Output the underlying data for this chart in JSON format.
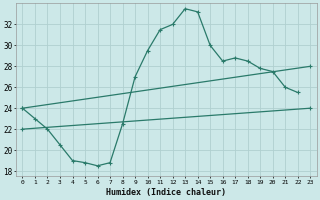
{
  "xlabel": "Humidex (Indice chaleur)",
  "background_color": "#cce8e8",
  "grid_color": "#b0d0d0",
  "line_color": "#2a7a6a",
  "xlim": [
    -0.5,
    23.5
  ],
  "ylim": [
    17.5,
    34.0
  ],
  "yticks": [
    18,
    20,
    22,
    24,
    26,
    28,
    30,
    32
  ],
  "xticks": [
    0,
    1,
    2,
    3,
    4,
    5,
    6,
    7,
    8,
    9,
    10,
    11,
    12,
    13,
    14,
    15,
    16,
    17,
    18,
    19,
    20,
    21,
    22,
    23
  ],
  "line1_x": [
    0,
    1,
    2,
    3,
    4,
    5,
    6,
    7,
    8,
    9,
    10,
    11,
    12,
    13,
    14,
    15,
    16,
    17,
    18,
    19,
    20,
    21,
    22
  ],
  "line1_y": [
    24.0,
    23.0,
    22.0,
    20.5,
    19.0,
    18.8,
    18.5,
    18.8,
    22.5,
    27.0,
    29.5,
    31.5,
    32.0,
    33.5,
    33.2,
    30.0,
    28.5,
    28.8,
    28.5,
    27.8,
    27.5,
    26.0,
    25.5
  ],
  "line2_x": [
    0,
    23
  ],
  "line2_y": [
    24.0,
    28.0
  ],
  "line3_x": [
    0,
    23
  ],
  "line3_y": [
    22.0,
    24.0
  ]
}
